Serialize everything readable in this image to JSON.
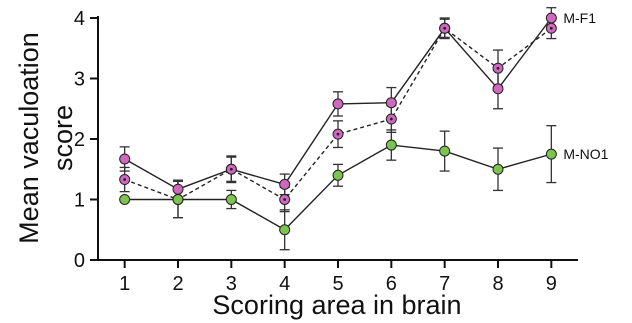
{
  "chart_data": {
    "type": "line",
    "title": "",
    "xlabel": "Scoring area in brain",
    "ylabel_lines": [
      "Mean vaculoation",
      "score"
    ],
    "x": [
      1,
      2,
      3,
      4,
      5,
      6,
      7,
      8,
      9
    ],
    "xlim": [
      0.5,
      9.5
    ],
    "ylim": [
      0,
      4
    ],
    "yticks": [
      0,
      1,
      2,
      3,
      4
    ],
    "grid": false,
    "legend": "none",
    "series": [
      {
        "name": "M-F1",
        "label_at_end": true,
        "line": "solid",
        "marker_color": "#d068c0",
        "marker_dot": false,
        "values": [
          1.67,
          1.17,
          1.5,
          1.25,
          2.58,
          2.6,
          3.83,
          2.83,
          4.0
        ],
        "errors": [
          0.2,
          0.15,
          0.22,
          0.17,
          0.2,
          0.25,
          0.17,
          0.33,
          0.17
        ]
      },
      {
        "name": "",
        "label_at_end": false,
        "line": "dashed",
        "marker_color": "#d068c0",
        "marker_dot": true,
        "values": [
          1.33,
          1.0,
          1.5,
          1.0,
          2.08,
          2.33,
          3.83,
          3.17,
          3.83
        ],
        "errors": [
          0.2,
          0.3,
          0.2,
          0.2,
          0.22,
          0.22,
          0.15,
          0.3,
          0.17
        ]
      },
      {
        "name": "M-NO1",
        "label_at_end": true,
        "line": "solid",
        "marker_color": "#7cc44e",
        "marker_dot": false,
        "values": [
          1.0,
          1.0,
          1.0,
          0.5,
          1.4,
          1.9,
          1.8,
          1.5,
          1.75
        ],
        "errors": [
          0.0,
          0.3,
          0.15,
          0.33,
          0.18,
          0.25,
          0.33,
          0.35,
          0.47
        ]
      }
    ]
  }
}
